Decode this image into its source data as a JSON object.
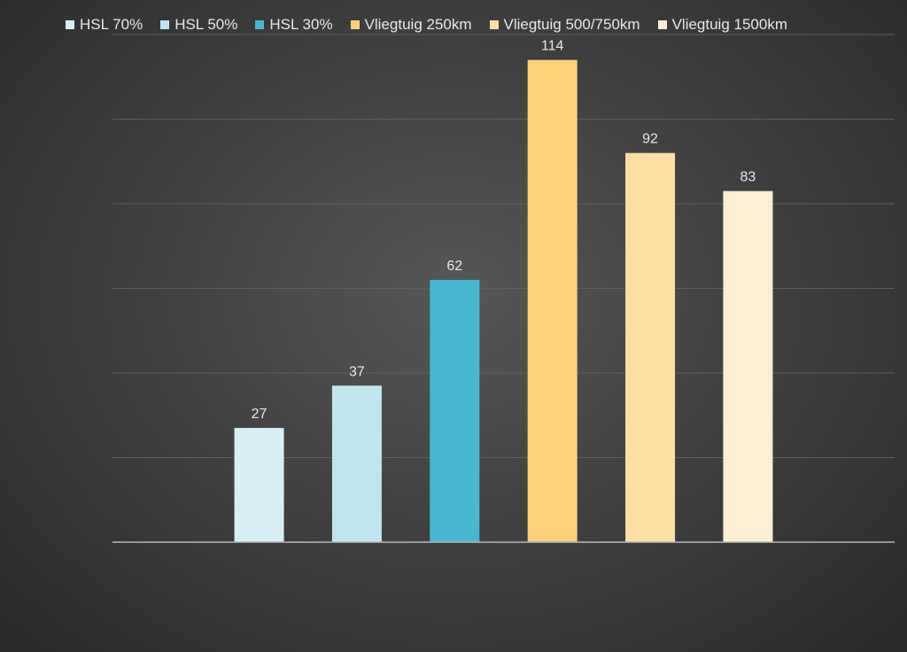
{
  "chart_data": {
    "type": "bar",
    "categories": [
      "HSL 70%",
      "HSL 50%",
      "HSL 30%",
      "Vliegtuig 250km",
      "Vliegtuig 500/750km",
      "Vliegtuig 1500km"
    ],
    "values": [
      27,
      37,
      62,
      114,
      92,
      83
    ],
    "colors": [
      "#d6eef4",
      "#bfe6ef",
      "#45b8d0",
      "#fdd07a",
      "#fddfa3",
      "#fdefd3"
    ],
    "title": "",
    "xlabel": "",
    "ylabel": "",
    "ylim": [
      0,
      120
    ],
    "grid": true,
    "legend": "top",
    "data_labels": true,
    "background": "#3a3a3a",
    "text_color": "#e8e8e8",
    "gridline_color": "#5e5e5e",
    "axis_color": "#b5b5b5"
  }
}
